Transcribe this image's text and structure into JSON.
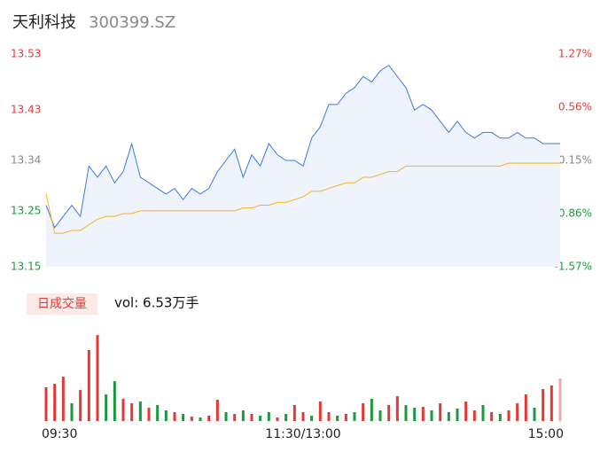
{
  "header": {
    "title": "天利科技",
    "code": "300399.SZ"
  },
  "chart_data": [
    {
      "type": "line",
      "xlim": [
        0,
        240
      ],
      "xticks": [
        {
          "value": 0,
          "label": "09:30"
        },
        {
          "value": 120,
          "label": "11:30/13:00"
        },
        {
          "value": 240,
          "label": "15:00"
        }
      ],
      "x": [
        0,
        4,
        8,
        12,
        16,
        20,
        24,
        28,
        32,
        36,
        40,
        44,
        48,
        52,
        56,
        60,
        64,
        68,
        72,
        76,
        80,
        84,
        88,
        92,
        96,
        100,
        104,
        108,
        112,
        116,
        120,
        124,
        128,
        132,
        136,
        140,
        144,
        148,
        152,
        156,
        160,
        164,
        168,
        172,
        176,
        180,
        184,
        188,
        192,
        196,
        200,
        204,
        208,
        212,
        216,
        220,
        224,
        228,
        232,
        236,
        240
      ],
      "ylim": [
        13.15,
        13.53
      ],
      "yticks": [
        13.15,
        13.25,
        13.34,
        13.43,
        13.53
      ],
      "ytick_colors": [
        "#1a9a3c",
        "#1a9a3c",
        "#888888",
        "#e53935",
        "#e53935"
      ],
      "y2lim": [
        -1.57,
        1.27
      ],
      "y2ticks": [
        {
          "value": -1.57,
          "label": "-1.57%"
        },
        {
          "value": -0.86,
          "label": "-0.86%"
        },
        {
          "value": -0.15,
          "label": "-0.15%"
        },
        {
          "value": 0.56,
          "label": "0.56%"
        },
        {
          "value": 1.27,
          "label": "1.27%"
        }
      ],
      "y2tick_colors": [
        "#1a9a3c",
        "#1a9a3c",
        "#888888",
        "#e53935",
        "#e53935"
      ],
      "area_color": "#eef3fc",
      "series": [
        {
          "name": "price",
          "color": "#3b78e7",
          "values": [
            13.26,
            13.22,
            13.24,
            13.26,
            13.24,
            13.33,
            13.31,
            13.33,
            13.3,
            13.32,
            13.37,
            13.31,
            13.3,
            13.29,
            13.28,
            13.29,
            13.27,
            13.29,
            13.28,
            13.29,
            13.32,
            13.34,
            13.36,
            13.31,
            13.35,
            13.33,
            13.37,
            13.35,
            13.34,
            13.34,
            13.33,
            13.38,
            13.4,
            13.44,
            13.44,
            13.46,
            13.47,
            13.49,
            13.48,
            13.5,
            13.51,
            13.49,
            13.47,
            13.43,
            13.44,
            13.43,
            13.41,
            13.39,
            13.41,
            13.39,
            13.38,
            13.39,
            13.39,
            13.38,
            13.38,
            13.39,
            13.38,
            13.38,
            13.37,
            13.37,
            13.37
          ]
        },
        {
          "name": "average",
          "color": "#f5b21f",
          "values": [
            13.28,
            13.21,
            13.21,
            13.215,
            13.215,
            13.225,
            13.235,
            13.24,
            13.24,
            13.245,
            13.245,
            13.25,
            13.25,
            13.25,
            13.25,
            13.25,
            13.25,
            13.25,
            13.25,
            13.25,
            13.25,
            13.25,
            13.25,
            13.255,
            13.255,
            13.26,
            13.26,
            13.265,
            13.265,
            13.27,
            13.275,
            13.285,
            13.285,
            13.29,
            13.295,
            13.3,
            13.3,
            13.31,
            13.31,
            13.315,
            13.32,
            13.32,
            13.33,
            13.33,
            13.33,
            13.33,
            13.33,
            13.33,
            13.33,
            13.33,
            13.33,
            13.33,
            13.33,
            13.33,
            13.335,
            13.335,
            13.335,
            13.335,
            13.335,
            13.335,
            13.335
          ]
        }
      ]
    },
    {
      "type": "bar",
      "label": "日成交量",
      "summary": "vol: 6.53万手",
      "xlim": [
        0,
        240
      ],
      "x": [
        0,
        4,
        8,
        12,
        16,
        20,
        24,
        28,
        32,
        36,
        40,
        44,
        48,
        52,
        56,
        60,
        64,
        68,
        72,
        76,
        80,
        84,
        88,
        92,
        96,
        100,
        104,
        108,
        112,
        116,
        120,
        124,
        128,
        132,
        136,
        140,
        144,
        148,
        152,
        156,
        160,
        164,
        168,
        172,
        176,
        180,
        184,
        188,
        192,
        196,
        200,
        204,
        208,
        212,
        216,
        220,
        224,
        228,
        232,
        236,
        240
      ],
      "ylim": [
        0,
        100
      ],
      "values": [
        38,
        42,
        50,
        20,
        35,
        80,
        97,
        30,
        45,
        25,
        20,
        22,
        15,
        18,
        12,
        10,
        8,
        5,
        4,
        6,
        24,
        10,
        8,
        12,
        8,
        6,
        10,
        4,
        8,
        18,
        10,
        6,
        22,
        10,
        6,
        8,
        10,
        20,
        25,
        12,
        18,
        28,
        18,
        15,
        16,
        12,
        20,
        10,
        14,
        22,
        12,
        18,
        10,
        8,
        12,
        20,
        30,
        15,
        36,
        40,
        48
      ],
      "colors": [
        "#e53935",
        "#e53935",
        "#e53935",
        "#1a9a3c",
        "#e53935",
        "#e53935",
        "#e53935",
        "#1a9a3c",
        "#1a9a3c",
        "#e53935",
        "#e53935",
        "#1a9a3c",
        "#e53935",
        "#1a9a3c",
        "#1a9a3c",
        "#e53935",
        "#1a9a3c",
        "#e53935",
        "#1a9a3c",
        "#e53935",
        "#e53935",
        "#1a9a3c",
        "#e53935",
        "#1a9a3c",
        "#e53935",
        "#1a9a3c",
        "#1a9a3c",
        "#e53935",
        "#1a9a3c",
        "#e53935",
        "#e53935",
        "#1a9a3c",
        "#e53935",
        "#e53935",
        "#1a9a3c",
        "#e53935",
        "#1a9a3c",
        "#e53935",
        "#1a9a3c",
        "#1a9a3c",
        "#e53935",
        "#e53935",
        "#1a9a3c",
        "#1a9a3c",
        "#e53935",
        "#1a9a3c",
        "#e53935",
        "#1a9a3c",
        "#1a9a3c",
        "#e53935",
        "#e53935",
        "#1a9a3c",
        "#e53935",
        "#1a9a3c",
        "#e53935",
        "#e53935",
        "#e53935",
        "#1a9a3c",
        "#e53935",
        "#e53935",
        "#f4a7a7"
      ]
    }
  ]
}
